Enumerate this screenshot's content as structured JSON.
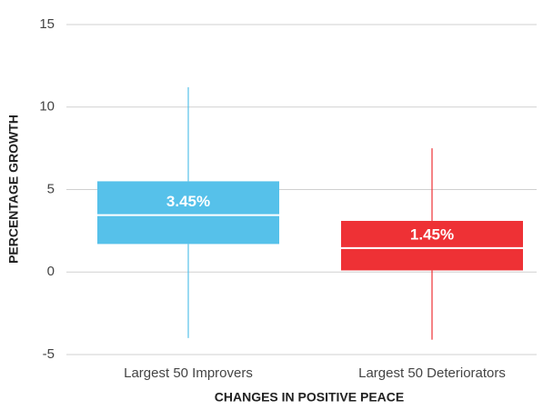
{
  "chart_data": {
    "type": "box",
    "x_label": "CHANGES IN POSITIVE PEACE",
    "y_label": "PERCENTAGE GROWTH",
    "categories": [
      "Largest 50 Improvers",
      "Largest 50 Deteriorators"
    ],
    "min": [
      -4,
      -4.1
    ],
    "q1": [
      1.7,
      0.1
    ],
    "median": [
      3.45,
      1.45
    ],
    "q3": [
      5.5,
      3.1
    ],
    "max": [
      11.2,
      7.5
    ],
    "value_labels": [
      "3.45%",
      "1.45%"
    ],
    "colors": [
      "#56c1ea",
      "#ee3135"
    ],
    "ylim": [
      -5,
      15
    ],
    "yticks": [
      -5,
      0,
      5,
      10,
      15
    ],
    "grid": true
  }
}
